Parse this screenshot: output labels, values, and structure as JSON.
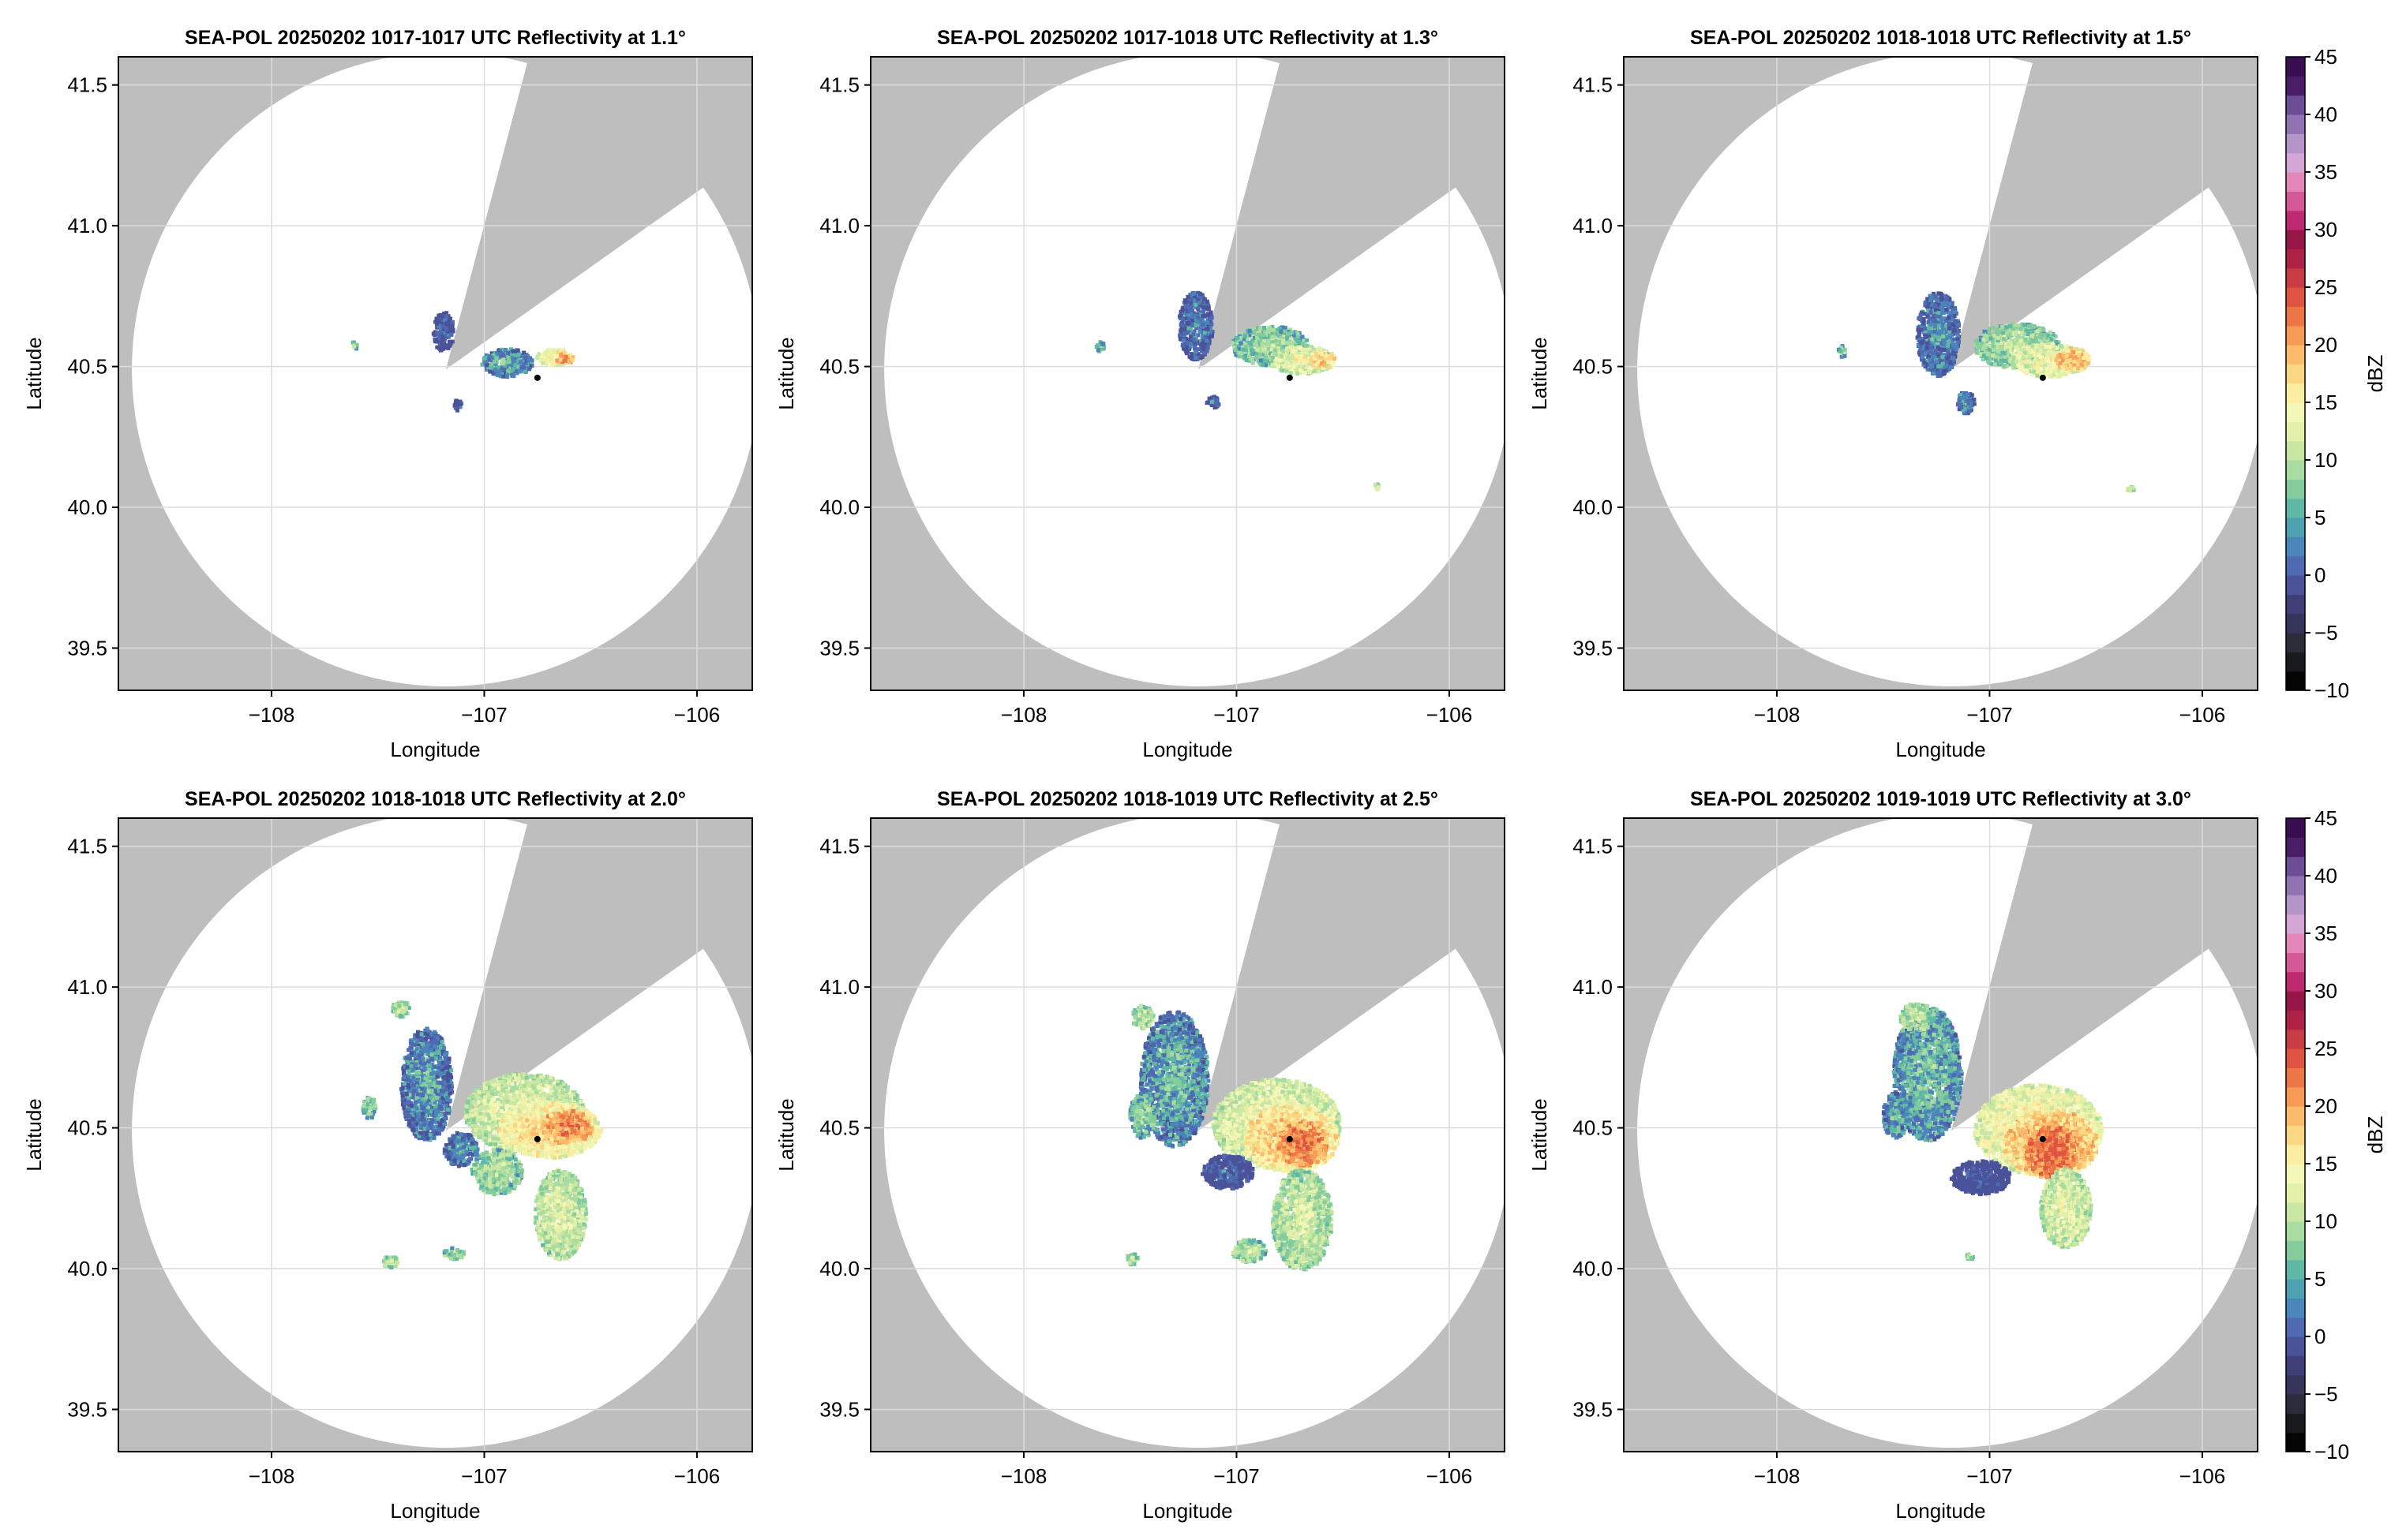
{
  "figure": {
    "colors": {
      "background": "#ffffff",
      "outside_range": "#bebebe",
      "no_echo": "#ffffff",
      "grid": "#dcdcdc",
      "axis": "#000000",
      "radar_marker": "#000000"
    },
    "colorbar": {
      "label": "dBZ",
      "ticks": [
        "45",
        "40",
        "35",
        "30",
        "25",
        "20",
        "15",
        "10",
        "5",
        "0",
        "−5",
        "−10"
      ],
      "range": [
        -10,
        45
      ],
      "step": 2.5,
      "colors": [
        "#050505",
        "#191a1e",
        "#2b2b39",
        "#35355b",
        "#3f3f78",
        "#4a529a",
        "#4f6ab3",
        "#4a86ba",
        "#4ea1b3",
        "#5fb8a5",
        "#85cc9c",
        "#a9dca1",
        "#c9e7a3",
        "#e3f1a8",
        "#f5f7b6",
        "#fbeea0",
        "#fcd783",
        "#fbbb6a",
        "#f69a55",
        "#ec7646",
        "#de5440",
        "#c83c44",
        "#ae2246",
        "#951647",
        "#be2a72",
        "#d55899",
        "#e487b8",
        "#d3a6d6",
        "#b494c9",
        "#8f73b2",
        "#6d4d95",
        "#4c1d67",
        "#3a0d50"
      ]
    },
    "echo_scale": [
      "#4a529a",
      "#4f6ab3",
      "#4a86ba",
      "#5fb8a5",
      "#85cc9c",
      "#a9dca1",
      "#c9e7a3",
      "#e3f1a8",
      "#f5f7b6",
      "#fbeea0",
      "#fcd783",
      "#fbbb6a",
      "#f69a55",
      "#ec7646",
      "#de5440"
    ]
  },
  "chart_data": [
    {
      "type": "heatmap",
      "title": "SEA-POL 20250202 1017-1017 UTC Reflectivity at 1.1°",
      "xlabel": "Longitude",
      "ylabel": "Latitude",
      "xlim": [
        -108.72,
        -105.74
      ],
      "ylim": [
        39.35,
        41.6
      ],
      "xticks": [
        -108,
        -107,
        -106
      ],
      "xtick_labels": [
        "−108",
        "−107",
        "−106"
      ],
      "yticks": [
        41.5,
        41.0,
        40.5,
        40.0,
        39.5
      ],
      "ytick_labels": [
        "41.5",
        "41.0",
        "40.5",
        "40.0",
        "39.5"
      ],
      "grid": true,
      "radar": {
        "lon": -107.18,
        "lat": 40.49,
        "range_km": 125
      },
      "blocked_sector_deg": [
        15,
        55
      ],
      "marker": {
        "lon": -106.75,
        "lat": 40.46
      },
      "echo_clusters": [
        {
          "lon": -107.2,
          "lat": 40.63,
          "rlon": 0.05,
          "rlat": 0.07,
          "dbz": 3
        },
        {
          "lon": -106.9,
          "lat": 40.52,
          "rlon": 0.12,
          "rlat": 0.05,
          "dbz": 8
        },
        {
          "lon": -106.68,
          "lat": 40.54,
          "rlon": 0.08,
          "rlat": 0.03,
          "dbz": 20
        },
        {
          "lon": -106.63,
          "lat": 40.535,
          "rlon": 0.04,
          "rlat": 0.02,
          "dbz": 28
        },
        {
          "lon": -107.13,
          "lat": 40.37,
          "rlon": 0.02,
          "rlat": 0.02,
          "dbz": 3
        },
        {
          "lon": -107.62,
          "lat": 40.58,
          "rlon": 0.015,
          "rlat": 0.015,
          "dbz": 10
        }
      ]
    },
    {
      "type": "heatmap",
      "title": "SEA-POL 20250202 1017-1018 UTC Reflectivity at 1.3°",
      "xlabel": "Longitude",
      "ylabel": "Latitude",
      "xlim": [
        -108.72,
        -105.74
      ],
      "ylim": [
        39.35,
        41.6
      ],
      "xticks": [
        -108,
        -107,
        -106
      ],
      "xtick_labels": [
        "−108",
        "−107",
        "−106"
      ],
      "yticks": [
        41.5,
        41.0,
        40.5,
        40.0,
        39.5
      ],
      "ytick_labels": [
        "41.5",
        "41.0",
        "40.5",
        "40.0",
        "39.5"
      ],
      "grid": true,
      "radar": {
        "lon": -107.18,
        "lat": 40.49,
        "range_km": 125
      },
      "blocked_sector_deg": [
        15,
        55
      ],
      "marker": {
        "lon": -106.75,
        "lat": 40.46
      },
      "echo_clusters": [
        {
          "lon": -107.2,
          "lat": 40.65,
          "rlon": 0.08,
          "rlat": 0.12,
          "dbz": 5
        },
        {
          "lon": -106.85,
          "lat": 40.58,
          "rlon": 0.18,
          "rlat": 0.07,
          "dbz": 12
        },
        {
          "lon": -106.7,
          "lat": 40.53,
          "rlon": 0.15,
          "rlat": 0.05,
          "dbz": 18
        },
        {
          "lon": -106.6,
          "lat": 40.53,
          "rlon": 0.06,
          "rlat": 0.03,
          "dbz": 24
        },
        {
          "lon": -107.65,
          "lat": 40.58,
          "rlon": 0.02,
          "rlat": 0.02,
          "dbz": 10
        },
        {
          "lon": -107.12,
          "lat": 40.38,
          "rlon": 0.03,
          "rlat": 0.02,
          "dbz": 4
        },
        {
          "lon": -106.35,
          "lat": 40.08,
          "rlon": 0.01,
          "rlat": 0.01,
          "dbz": 16
        }
      ]
    },
    {
      "type": "heatmap",
      "title": "SEA-POL 20250202 1018-1018 UTC Reflectivity at 1.5°",
      "xlabel": "Longitude",
      "ylabel": "Latitude",
      "xlim": [
        -108.72,
        -105.74
      ],
      "ylim": [
        39.35,
        41.6
      ],
      "xticks": [
        -108,
        -107,
        -106
      ],
      "xtick_labels": [
        "−108",
        "−107",
        "−106"
      ],
      "yticks": [
        41.5,
        41.0,
        40.5,
        40.0,
        39.5
      ],
      "ytick_labels": [
        "41.5",
        "41.0",
        "40.5",
        "40.0",
        "39.5"
      ],
      "grid": true,
      "radar": {
        "lon": -107.18,
        "lat": 40.49,
        "range_km": 125
      },
      "blocked_sector_deg": [
        15,
        55
      ],
      "marker": {
        "lon": -106.75,
        "lat": 40.46
      },
      "echo_clusters": [
        {
          "lon": -107.25,
          "lat": 40.62,
          "rlon": 0.1,
          "rlat": 0.15,
          "dbz": 6
        },
        {
          "lon": -106.88,
          "lat": 40.58,
          "rlon": 0.2,
          "rlat": 0.08,
          "dbz": 13
        },
        {
          "lon": -106.72,
          "lat": 40.53,
          "rlon": 0.18,
          "rlat": 0.06,
          "dbz": 19
        },
        {
          "lon": -106.62,
          "lat": 40.53,
          "rlon": 0.08,
          "rlat": 0.04,
          "dbz": 26
        },
        {
          "lon": -107.12,
          "lat": 40.38,
          "rlon": 0.04,
          "rlat": 0.04,
          "dbz": 7
        },
        {
          "lon": -107.7,
          "lat": 40.56,
          "rlon": 0.02,
          "rlat": 0.02,
          "dbz": 12
        },
        {
          "lon": -106.35,
          "lat": 40.07,
          "rlon": 0.02,
          "rlat": 0.01,
          "dbz": 16
        }
      ]
    },
    {
      "type": "heatmap",
      "title": "SEA-POL 20250202 1018-1018 UTC Reflectivity at 2.0°",
      "xlabel": "Longitude",
      "ylabel": "Latitude",
      "xlim": [
        -108.72,
        -105.74
      ],
      "ylim": [
        39.35,
        41.6
      ],
      "xticks": [
        -108,
        -107,
        -106
      ],
      "xtick_labels": [
        "−108",
        "−107",
        "−106"
      ],
      "yticks": [
        41.5,
        41.0,
        40.5,
        40.0,
        39.5
      ],
      "ytick_labels": [
        "41.5",
        "41.0",
        "40.5",
        "40.0",
        "39.5"
      ],
      "grid": true,
      "radar": {
        "lon": -107.18,
        "lat": 40.49,
        "range_km": 125
      },
      "blocked_sector_deg": [
        15,
        55
      ],
      "marker": {
        "lon": -106.75,
        "lat": 40.46
      },
      "echo_clusters": [
        {
          "lon": -107.28,
          "lat": 40.66,
          "rlon": 0.12,
          "rlat": 0.2,
          "dbz": 7
        },
        {
          "lon": -106.82,
          "lat": 40.56,
          "rlon": 0.28,
          "rlat": 0.14,
          "dbz": 17
        },
        {
          "lon": -106.7,
          "lat": 40.5,
          "rlon": 0.24,
          "rlat": 0.1,
          "dbz": 22
        },
        {
          "lon": -106.62,
          "lat": 40.51,
          "rlon": 0.12,
          "rlat": 0.06,
          "dbz": 28
        },
        {
          "lon": -106.65,
          "lat": 40.2,
          "rlon": 0.12,
          "rlat": 0.16,
          "dbz": 16
        },
        {
          "lon": -106.95,
          "lat": 40.35,
          "rlon": 0.12,
          "rlat": 0.08,
          "dbz": 13
        },
        {
          "lon": -107.12,
          "lat": 40.43,
          "rlon": 0.08,
          "rlat": 0.06,
          "dbz": 6
        },
        {
          "lon": -107.55,
          "lat": 40.58,
          "rlon": 0.03,
          "rlat": 0.04,
          "dbz": 12
        },
        {
          "lon": -107.4,
          "lat": 40.93,
          "rlon": 0.04,
          "rlat": 0.03,
          "dbz": 14
        },
        {
          "lon": -107.45,
          "lat": 40.03,
          "rlon": 0.04,
          "rlat": 0.02,
          "dbz": 14
        },
        {
          "lon": -107.15,
          "lat": 40.06,
          "rlon": 0.05,
          "rlat": 0.02,
          "dbz": 13
        }
      ]
    },
    {
      "type": "heatmap",
      "title": "SEA-POL 20250202 1018-1019 UTC Reflectivity at 2.5°",
      "xlabel": "Longitude",
      "ylabel": "Latitude",
      "xlim": [
        -108.72,
        -105.74
      ],
      "ylim": [
        39.35,
        41.6
      ],
      "xticks": [
        -108,
        -107,
        -106
      ],
      "xtick_labels": [
        "−108",
        "−107",
        "−106"
      ],
      "yticks": [
        41.5,
        41.0,
        40.5,
        40.0,
        39.5
      ],
      "ytick_labels": [
        "41.5",
        "41.0",
        "40.5",
        "40.0",
        "39.5"
      ],
      "grid": true,
      "radar": {
        "lon": -107.18,
        "lat": 40.49,
        "range_km": 125
      },
      "blocked_sector_deg": [
        15,
        55
      ],
      "marker": {
        "lon": -106.75,
        "lat": 40.46
      },
      "echo_clusters": [
        {
          "lon": -107.3,
          "lat": 40.68,
          "rlon": 0.16,
          "rlat": 0.24,
          "dbz": 8
        },
        {
          "lon": -106.82,
          "lat": 40.52,
          "rlon": 0.3,
          "rlat": 0.16,
          "dbz": 18
        },
        {
          "lon": -106.75,
          "lat": 40.47,
          "rlon": 0.22,
          "rlat": 0.12,
          "dbz": 24
        },
        {
          "lon": -106.7,
          "lat": 40.45,
          "rlon": 0.12,
          "rlat": 0.08,
          "dbz": 29
        },
        {
          "lon": -106.7,
          "lat": 40.18,
          "rlon": 0.14,
          "rlat": 0.18,
          "dbz": 15
        },
        {
          "lon": -107.05,
          "lat": 40.35,
          "rlon": 0.12,
          "rlat": 0.06,
          "dbz": 3
        },
        {
          "lon": -107.45,
          "lat": 40.55,
          "rlon": 0.06,
          "rlat": 0.08,
          "dbz": 11
        },
        {
          "lon": -107.45,
          "lat": 40.9,
          "rlon": 0.05,
          "rlat": 0.04,
          "dbz": 14
        },
        {
          "lon": -106.95,
          "lat": 40.07,
          "rlon": 0.08,
          "rlat": 0.04,
          "dbz": 14
        },
        {
          "lon": -107.5,
          "lat": 40.04,
          "rlon": 0.03,
          "rlat": 0.02,
          "dbz": 14
        }
      ]
    },
    {
      "type": "heatmap",
      "title": "SEA-POL 20250202 1019-1019 UTC Reflectivity at 3.0°",
      "xlabel": "Longitude",
      "ylabel": "Latitude",
      "xlim": [
        -108.72,
        -105.74
      ],
      "ylim": [
        39.35,
        41.6
      ],
      "xticks": [
        -108,
        -107,
        -106
      ],
      "xtick_labels": [
        "−108",
        "−107",
        "−106"
      ],
      "yticks": [
        41.5,
        41.0,
        40.5,
        40.0,
        39.5
      ],
      "ytick_labels": [
        "41.5",
        "41.0",
        "40.5",
        "40.0",
        "39.5"
      ],
      "grid": true,
      "radar": {
        "lon": -107.18,
        "lat": 40.49,
        "range_km": 125
      },
      "blocked_sector_deg": [
        15,
        55
      ],
      "marker": {
        "lon": -106.75,
        "lat": 40.46
      },
      "echo_clusters": [
        {
          "lon": -107.3,
          "lat": 40.7,
          "rlon": 0.16,
          "rlat": 0.24,
          "dbz": 9
        },
        {
          "lon": -106.78,
          "lat": 40.5,
          "rlon": 0.3,
          "rlat": 0.16,
          "dbz": 20
        },
        {
          "lon": -106.72,
          "lat": 40.45,
          "rlon": 0.22,
          "rlat": 0.12,
          "dbz": 26
        },
        {
          "lon": -106.72,
          "lat": 40.42,
          "rlon": 0.12,
          "rlat": 0.09,
          "dbz": 31
        },
        {
          "lon": -106.65,
          "lat": 40.22,
          "rlon": 0.12,
          "rlat": 0.14,
          "dbz": 17
        },
        {
          "lon": -107.05,
          "lat": 40.33,
          "rlon": 0.14,
          "rlat": 0.06,
          "dbz": 1
        },
        {
          "lon": -107.45,
          "lat": 40.55,
          "rlon": 0.06,
          "rlat": 0.08,
          "dbz": 8
        },
        {
          "lon": -107.35,
          "lat": 40.9,
          "rlon": 0.08,
          "rlat": 0.05,
          "dbz": 14
        },
        {
          "lon": -107.1,
          "lat": 40.05,
          "rlon": 0.02,
          "rlat": 0.01,
          "dbz": 14
        }
      ]
    }
  ]
}
